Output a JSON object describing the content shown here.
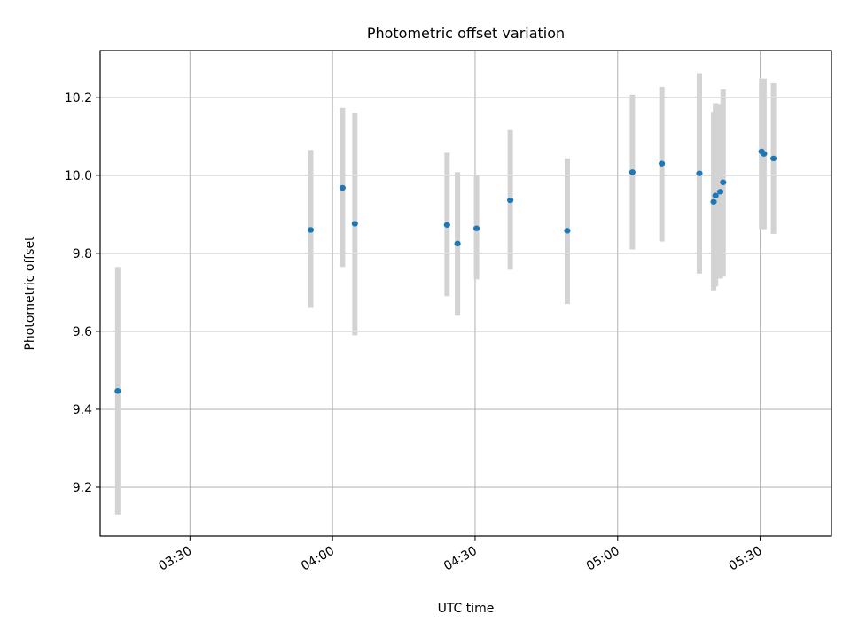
{
  "chart_data": {
    "type": "scatter",
    "title": "Photometric offset variation",
    "xlabel": "UTC time",
    "ylabel": "Photometric offset",
    "xlim_minutes": [
      191.1,
      345.0
    ],
    "ylim": [
      9.075,
      10.32
    ],
    "x_ticks": [
      {
        "minutes": 210,
        "label": "03:30"
      },
      {
        "minutes": 240,
        "label": "04:00"
      },
      {
        "minutes": 270,
        "label": "04:30"
      },
      {
        "minutes": 300,
        "label": "05:00"
      },
      {
        "minutes": 330,
        "label": "05:30"
      }
    ],
    "y_ticks": [
      9.2,
      9.4,
      9.6,
      9.8,
      10.0,
      10.2
    ],
    "y_tick_labels": [
      "9.2",
      "9.4",
      "9.6",
      "9.8",
      "10.0",
      "10.2"
    ],
    "grid": true,
    "colors": {
      "point": "#1f77b4",
      "errorbar": "#d3d3d3",
      "grid": "#b0b0b0"
    },
    "points": [
      {
        "minutes": 194.8,
        "value": 9.447,
        "low": 9.13,
        "high": 9.765
      },
      {
        "minutes": 235.4,
        "value": 9.86,
        "low": 9.66,
        "high": 10.065
      },
      {
        "minutes": 242.1,
        "value": 9.968,
        "low": 9.765,
        "high": 10.173
      },
      {
        "minutes": 244.7,
        "value": 9.876,
        "low": 9.59,
        "high": 10.16
      },
      {
        "minutes": 264.1,
        "value": 9.873,
        "low": 9.69,
        "high": 10.058
      },
      {
        "minutes": 266.3,
        "value": 9.825,
        "low": 9.64,
        "high": 10.008
      },
      {
        "minutes": 270.3,
        "value": 9.864,
        "low": 9.733,
        "high": 10.0
      },
      {
        "minutes": 277.4,
        "value": 9.936,
        "low": 9.758,
        "high": 10.116
      },
      {
        "minutes": 289.4,
        "value": 9.858,
        "low": 9.67,
        "high": 10.043
      },
      {
        "minutes": 303.1,
        "value": 10.008,
        "low": 9.81,
        "high": 10.207
      },
      {
        "minutes": 309.3,
        "value": 10.03,
        "low": 9.83,
        "high": 10.227
      },
      {
        "minutes": 317.2,
        "value": 10.005,
        "low": 9.748,
        "high": 10.262
      },
      {
        "minutes": 320.2,
        "value": 9.932,
        "low": 9.705,
        "high": 10.163
      },
      {
        "minutes": 320.6,
        "value": 9.948,
        "low": 9.715,
        "high": 10.185
      },
      {
        "minutes": 321.6,
        "value": 9.958,
        "low": 9.735,
        "high": 10.183
      },
      {
        "minutes": 322.2,
        "value": 9.982,
        "low": 9.74,
        "high": 10.22
      },
      {
        "minutes": 330.3,
        "value": 10.061,
        "low": 9.862,
        "high": 10.248
      },
      {
        "minutes": 330.8,
        "value": 10.055,
        "low": 9.862,
        "high": 10.248
      },
      {
        "minutes": 332.8,
        "value": 10.043,
        "low": 9.85,
        "high": 10.236
      }
    ]
  }
}
